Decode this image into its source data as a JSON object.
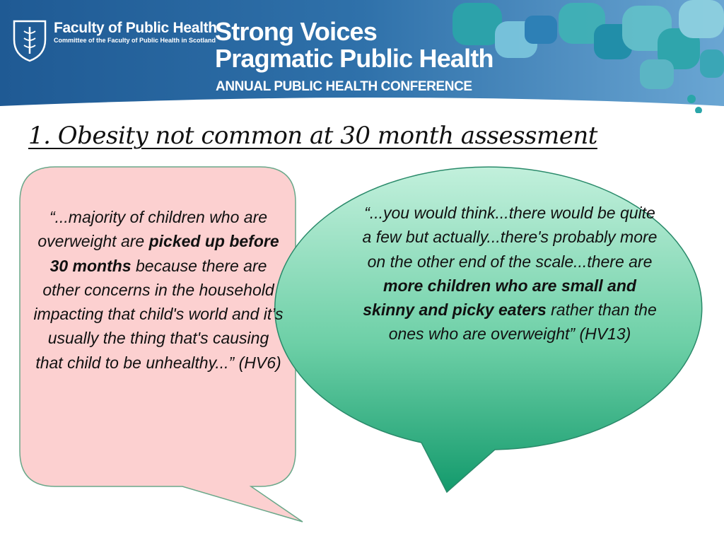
{
  "banner": {
    "org_name": "Faculty of Public Health",
    "org_subtitle": "Committee of the Faculty of Public Health in Scotland",
    "conference_line1": "Strong Voices",
    "conference_line2": "Pragmatic Public Health",
    "conference_line3": "ANNUAL PUBLIC HEALTH CONFERENCE",
    "colors": {
      "banner_dark": "#1f5a94",
      "banner_light": "#4f93c5",
      "accent_teal": "#2ba9ac"
    }
  },
  "slide": {
    "title": "1. Obesity not common at 30 month assessment"
  },
  "quote_left": {
    "pre": "“...majority of children who are overweight are ",
    "bold": "picked up before 30 months",
    "post": " because there are other concerns  in the household impacting that child's world and it’s usually the thing that's causing that child to be unhealthy...” (HV6)",
    "fill_color": "#fcd0d0"
  },
  "quote_right": {
    "pre": "“...you would think...there would be quite a few but actually...there's probably more on the other end of the scale...there are ",
    "bold": "more children who are small and skinny and picky eaters",
    "post": " rather than the ones who are overweight” (HV13)",
    "fill_color_top": "#c2f0dc",
    "fill_color_bottom": "#139a6c"
  }
}
